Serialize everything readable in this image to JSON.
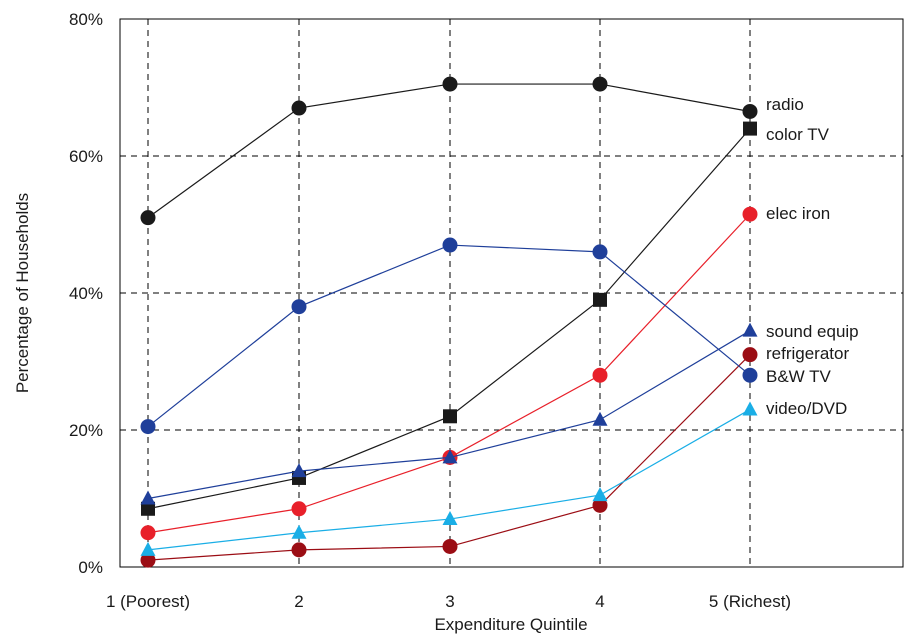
{
  "chart_data": {
    "type": "line",
    "xlabel": "Expenditure Quintile",
    "ylabel": "Percentage of Households",
    "categories": [
      "1 (Poorest)",
      "2",
      "3",
      "4",
      "5 (Richest)"
    ],
    "y_ticks": [
      "0%",
      "20%",
      "40%",
      "60%",
      "80%"
    ],
    "ylim": [
      0,
      80
    ],
    "grid": true,
    "legend": "labels at right end of each line",
    "series": [
      {
        "name": "radio",
        "color": "#1a1a1a",
        "marker": "circle",
        "values": [
          51,
          67,
          70.5,
          70.5,
          66.5
        ]
      },
      {
        "name": "color TV",
        "color": "#1a1a1a",
        "marker": "square",
        "values": [
          8.5,
          13,
          22,
          39,
          64
        ]
      },
      {
        "name": "elec iron",
        "color": "#e8202a",
        "marker": "circle",
        "values": [
          5,
          8.5,
          16,
          28,
          51.5
        ]
      },
      {
        "name": "sound equip",
        "color": "#1f3f9a",
        "marker": "triangle",
        "values": [
          10,
          14,
          16,
          21.5,
          34.5
        ]
      },
      {
        "name": "refrigerator",
        "color": "#9b0d14",
        "marker": "circle",
        "values": [
          1,
          2.5,
          3,
          9,
          31
        ]
      },
      {
        "name": "B&W TV",
        "color": "#1f3f9a",
        "marker": "circle",
        "values": [
          20.5,
          38,
          47,
          46,
          28
        ]
      },
      {
        "name": "video/DVD",
        "color": "#1aaee6",
        "marker": "triangle",
        "values": [
          2.5,
          5,
          7,
          10.5,
          23
        ]
      }
    ]
  }
}
